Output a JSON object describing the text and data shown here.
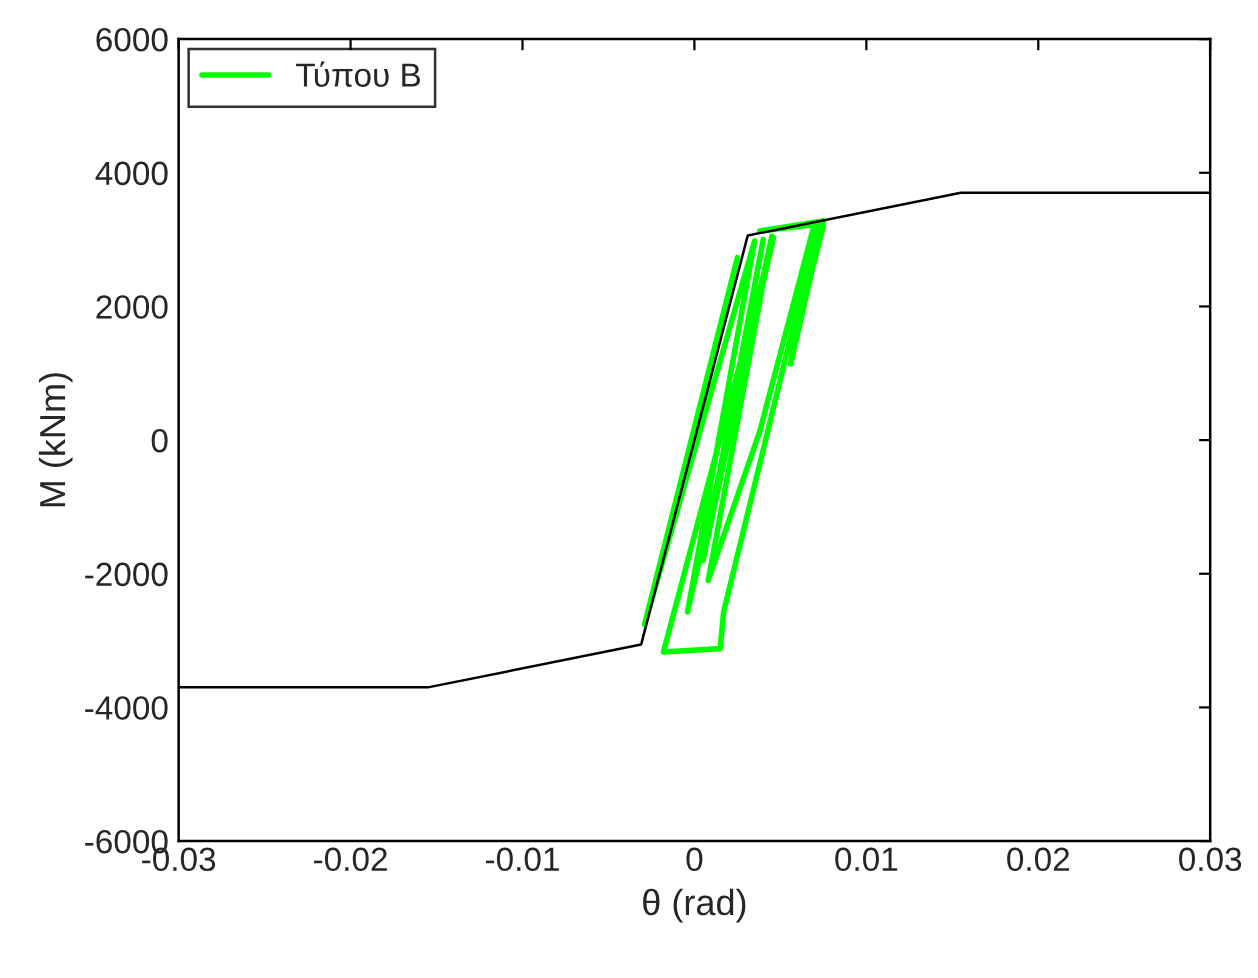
{
  "chart_data": {
    "type": "line",
    "xlabel": "θ (rad)",
    "ylabel": "M (kNm)",
    "xlim": [
      -0.03,
      0.03
    ],
    "ylim": [
      -6000,
      6000
    ],
    "xticks": [
      {
        "value": -0.03,
        "label": "-0.03"
      },
      {
        "value": -0.02,
        "label": "-0.02"
      },
      {
        "value": -0.01,
        "label": "-0.01"
      },
      0,
      0.01,
      0.02,
      0.03
    ],
    "yticks": [
      {
        "value": -6000,
        "label": "-6000"
      },
      {
        "value": -4000,
        "label": "-4000"
      },
      {
        "value": -2000,
        "label": "-2000"
      },
      0,
      2000,
      4000,
      6000
    ],
    "grid": false,
    "legend": "top left",
    "series": [
      {
        "name": "Τύπου Β",
        "color": "#00ff00",
        "x": [
          0,
          0.0025,
          -0.0029,
          0.0035,
          -0.0004,
          0.0046,
          -0.0018,
          0.0015,
          0.0017,
          0.0072,
          0.0038,
          0.0075,
          0.0056,
          0.0058,
          0.0075,
          0.007,
          0.0038,
          0.0008,
          0.0045,
          0.0005,
          0.004,
          0.001
        ],
        "values": [
          0,
          2730,
          -2760,
          2980,
          -2570,
          3030,
          -3170,
          -3120,
          -2570,
          3230,
          3130,
          3280,
          1140,
          1500,
          3200,
          3250,
          130,
          -2100,
          3050,
          -1800,
          3000,
          -1200
        ]
      },
      {
        "color": "#000000",
        "x": [
          -0.03,
          -0.0155,
          -0.0031,
          0.0031,
          0.0155,
          0.03
        ],
        "values": [
          -3700,
          -3700,
          -3060,
          3060,
          3700,
          3700
        ]
      }
    ]
  }
}
